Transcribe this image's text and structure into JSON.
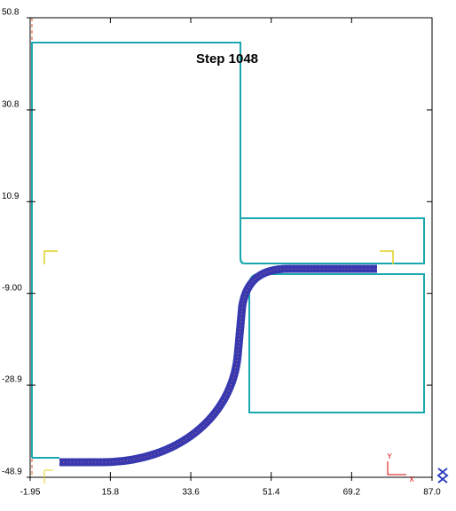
{
  "chart_data": {
    "type": "simulation",
    "title": "Step 1048",
    "xlim": [
      -1.95,
      87
    ],
    "xticks": [
      -1.95,
      15.8,
      33.6,
      51.4,
      69.2,
      {
        "value": 87,
        "label": "87.0"
      }
    ],
    "ylim": [
      -48.9,
      50.8
    ],
    "yticks": [
      -48.9,
      -28.9,
      {
        "value": -9,
        "label": "-9.00"
      },
      10.9,
      30.8,
      50.8
    ],
    "triad": {
      "x": "X",
      "y": "Y"
    }
  }
}
